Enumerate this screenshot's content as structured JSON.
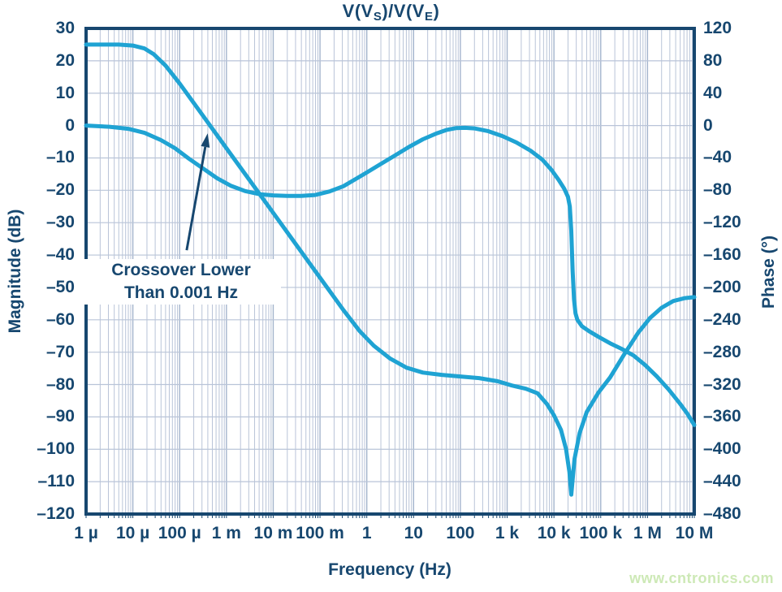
{
  "title": {
    "p1": "V(V",
    "sub1": "S",
    "p2": ")/V(V",
    "sub2": "E",
    "p3": ")"
  },
  "annotation": {
    "line1": "Crossover Lower",
    "line2": "Than 0.001 Hz"
  },
  "watermark": "www.cntronics.com",
  "chart_data": {
    "type": "line",
    "title": "V(VS)/V(VE)",
    "x_axis": {
      "label": "Frequency (Hz)",
      "scale": "log",
      "min_log10": -6,
      "max_log10": 7,
      "ticks": [
        {
          "label": "1 µ",
          "log10": -6
        },
        {
          "label": "10 µ",
          "log10": -5
        },
        {
          "label": "100 µ",
          "log10": -4
        },
        {
          "label": "1 m",
          "log10": -3
        },
        {
          "label": "10 m",
          "log10": -2
        },
        {
          "label": "100 m",
          "log10": -1
        },
        {
          "label": "1",
          "log10": 0
        },
        {
          "label": "10",
          "log10": 1
        },
        {
          "label": "100",
          "log10": 2
        },
        {
          "label": "1 k",
          "log10": 3
        },
        {
          "label": "10 k",
          "log10": 4
        },
        {
          "label": "100 k",
          "log10": 5
        },
        {
          "label": "1 M",
          "log10": 6
        },
        {
          "label": "10 M",
          "log10": 7
        }
      ]
    },
    "y_left": {
      "label": "Magnitude (dB)",
      "min": -120,
      "max": 30,
      "step": 10,
      "ticks": [
        {
          "label": "30",
          "value": 30
        },
        {
          "label": "20",
          "value": 20
        },
        {
          "label": "10",
          "value": 10
        },
        {
          "label": "0",
          "value": 0
        },
        {
          "label": "–10",
          "value": -10
        },
        {
          "label": "–20",
          "value": -20
        },
        {
          "label": "–30",
          "value": -30
        },
        {
          "label": "–40",
          "value": -40
        },
        {
          "label": "–50",
          "value": -50
        },
        {
          "label": "–60",
          "value": -60
        },
        {
          "label": "–70",
          "value": -70
        },
        {
          "label": "–80",
          "value": -80
        },
        {
          "label": "–90",
          "value": -90
        },
        {
          "label": "–100",
          "value": -100
        },
        {
          "label": "–110",
          "value": -110
        },
        {
          "label": "–120",
          "value": -120
        }
      ]
    },
    "y_right": {
      "label": "Phase (°)",
      "min": -480,
      "max": 120,
      "step": 40,
      "ticks": [
        {
          "label": "120",
          "value": 120
        },
        {
          "label": "80",
          "value": 80
        },
        {
          "label": "40",
          "value": 40
        },
        {
          "label": "0",
          "value": 0
        },
        {
          "label": "–40",
          "value": -40
        },
        {
          "label": "–80",
          "value": -80
        },
        {
          "label": "–120",
          "value": -120
        },
        {
          "label": "–160",
          "value": -160
        },
        {
          "label": "–200",
          "value": -200
        },
        {
          "label": "–240",
          "value": -240
        },
        {
          "label": "–280",
          "value": -280
        },
        {
          "label": "–320",
          "value": -320
        },
        {
          "label": "–360",
          "value": -360
        },
        {
          "label": "–400",
          "value": -400
        },
        {
          "label": "–440",
          "value": -440
        },
        {
          "label": "–480",
          "value": -480
        }
      ]
    },
    "series": [
      {
        "name": "Magnitude (dB)",
        "axis": "left",
        "points": [
          [
            -6,
            25
          ],
          [
            -5.3,
            25
          ],
          [
            -5.0,
            24.7
          ],
          [
            -4.75,
            23.8
          ],
          [
            -4.55,
            22
          ],
          [
            -4.3,
            18.5
          ],
          [
            -4.0,
            13
          ],
          [
            -3.65,
            6
          ],
          [
            -3.35,
            0
          ],
          [
            -3.0,
            -7
          ],
          [
            -2.5,
            -17
          ],
          [
            -2.0,
            -27
          ],
          [
            -1.5,
            -37
          ],
          [
            -1.0,
            -47
          ],
          [
            -0.5,
            -57
          ],
          [
            -0.15,
            -63.5
          ],
          [
            0.15,
            -68
          ],
          [
            0.5,
            -72
          ],
          [
            0.85,
            -74.8
          ],
          [
            1.2,
            -76.3
          ],
          [
            1.6,
            -77
          ],
          [
            2.0,
            -77.5
          ],
          [
            2.4,
            -78
          ],
          [
            2.8,
            -79
          ],
          [
            3.1,
            -80.3
          ],
          [
            3.4,
            -81.3
          ],
          [
            3.65,
            -82.7
          ],
          [
            3.85,
            -86
          ],
          [
            4.0,
            -89.5
          ],
          [
            4.15,
            -94
          ],
          [
            4.26,
            -100
          ],
          [
            4.33,
            -107
          ],
          [
            4.37,
            -114
          ],
          [
            4.44,
            -103
          ],
          [
            4.55,
            -95
          ],
          [
            4.7,
            -88.5
          ],
          [
            4.95,
            -82.5
          ],
          [
            5.2,
            -77.8
          ],
          [
            5.5,
            -70.7
          ],
          [
            5.8,
            -64
          ],
          [
            6.05,
            -59.5
          ],
          [
            6.3,
            -56.3
          ],
          [
            6.55,
            -54.2
          ],
          [
            6.8,
            -53.3
          ],
          [
            7.0,
            -53
          ]
        ]
      },
      {
        "name": "Phase (°)",
        "axis": "right",
        "points": [
          [
            -6,
            0
          ],
          [
            -5.5,
            -1.5
          ],
          [
            -5.1,
            -4
          ],
          [
            -4.75,
            -9
          ],
          [
            -4.4,
            -18
          ],
          [
            -4.1,
            -28
          ],
          [
            -3.8,
            -41
          ],
          [
            -3.5,
            -53
          ],
          [
            -3.2,
            -65
          ],
          [
            -2.9,
            -74.5
          ],
          [
            -2.6,
            -81
          ],
          [
            -2.3,
            -84.8
          ],
          [
            -2.0,
            -86.3
          ],
          [
            -1.7,
            -87
          ],
          [
            -1.4,
            -87
          ],
          [
            -1.1,
            -85.8
          ],
          [
            -0.8,
            -81.5
          ],
          [
            -0.5,
            -75
          ],
          [
            -0.25,
            -66.5
          ],
          [
            0,
            -58
          ],
          [
            0.3,
            -47.5
          ],
          [
            0.6,
            -37
          ],
          [
            0.9,
            -26.5
          ],
          [
            1.2,
            -17
          ],
          [
            1.5,
            -9.5
          ],
          [
            1.7,
            -5.5
          ],
          [
            1.9,
            -3.2
          ],
          [
            2.1,
            -2.8
          ],
          [
            2.3,
            -3.5
          ],
          [
            2.6,
            -7
          ],
          [
            2.9,
            -13
          ],
          [
            3.2,
            -21
          ],
          [
            3.5,
            -31
          ],
          [
            3.75,
            -42
          ],
          [
            3.95,
            -55
          ],
          [
            4.1,
            -67
          ],
          [
            4.22,
            -78
          ],
          [
            4.3,
            -88
          ],
          [
            4.34,
            -100
          ],
          [
            4.37,
            -130
          ],
          [
            4.4,
            -180
          ],
          [
            4.43,
            -215
          ],
          [
            4.46,
            -232
          ],
          [
            4.5,
            -240
          ],
          [
            4.6,
            -248
          ],
          [
            4.75,
            -254
          ],
          [
            4.95,
            -261
          ],
          [
            5.2,
            -269
          ],
          [
            5.45,
            -276
          ],
          [
            5.7,
            -284
          ],
          [
            5.95,
            -296
          ],
          [
            6.2,
            -310
          ],
          [
            6.45,
            -326
          ],
          [
            6.7,
            -344
          ],
          [
            6.85,
            -356
          ],
          [
            7.0,
            -370
          ]
        ]
      }
    ],
    "annotation_arrow": {
      "from": {
        "log10": -3.85,
        "db": -38.5
      },
      "to": {
        "log10": -3.4,
        "db": -2.4
      }
    },
    "grid": {
      "h_step_db": 10,
      "v_major": "decades",
      "v_minor": "log 2-9"
    },
    "colors": {
      "curve": "#1FA3D3",
      "grid_minor": "#b9c4d8",
      "grid_major": "#a3b4cc",
      "axis": "#17476F",
      "text": "#17476F",
      "watermark": "#cde9b6",
      "background": "#ffffff"
    }
  }
}
